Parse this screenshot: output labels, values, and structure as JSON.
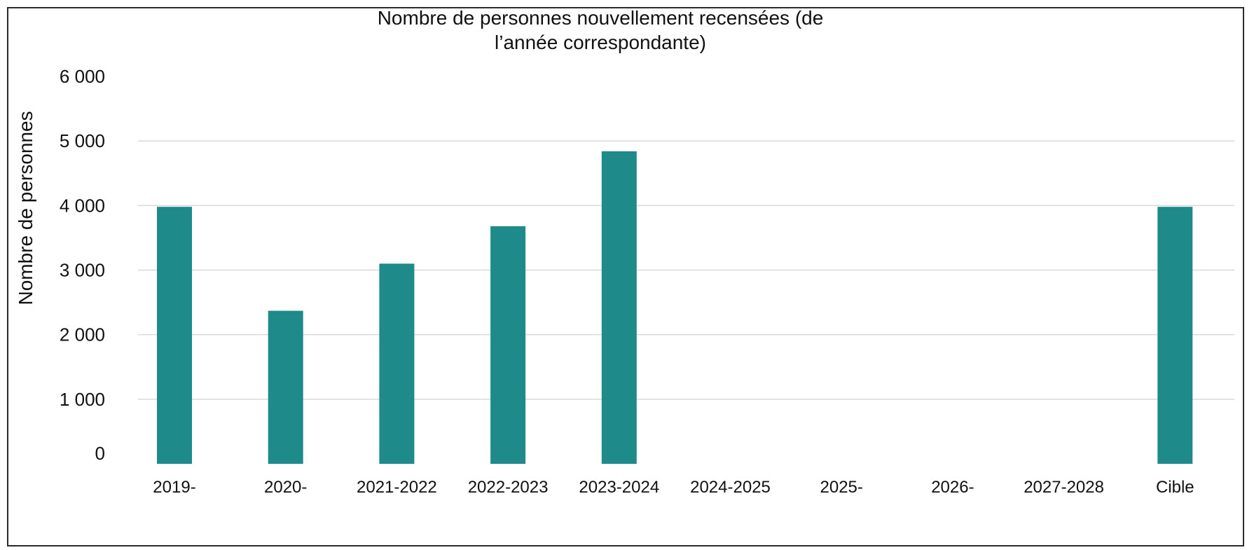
{
  "chart_data": {
    "type": "bar",
    "title_lines": [
      "Nombre de personnes  nouvellement  recensées  (de",
      "l’année  correspondante)"
    ],
    "xlabel": "",
    "ylabel": "Nombre de personnes",
    "categories": [
      "2019-",
      "2020-",
      "2021-2022",
      "2022-2023",
      "2023-2024",
      "2024-2025",
      "2025-",
      "2026-",
      "2027-2028",
      "Cible"
    ],
    "values": [
      3980,
      2370,
      3100,
      3680,
      4840,
      null,
      null,
      null,
      null,
      3980
    ],
    "ylim": [
      0,
      6000
    ],
    "yticks": [
      0,
      1000,
      2000,
      3000,
      4000,
      5000,
      6000
    ],
    "ytick_labels": [
      "0",
      "1 000",
      "2 000",
      "3 000",
      "4 000",
      "5 000",
      "6 000"
    ],
    "grid": true,
    "legend": "none",
    "bar_color": "#1f8a8a",
    "grid_color": "#d9d9d9"
  }
}
